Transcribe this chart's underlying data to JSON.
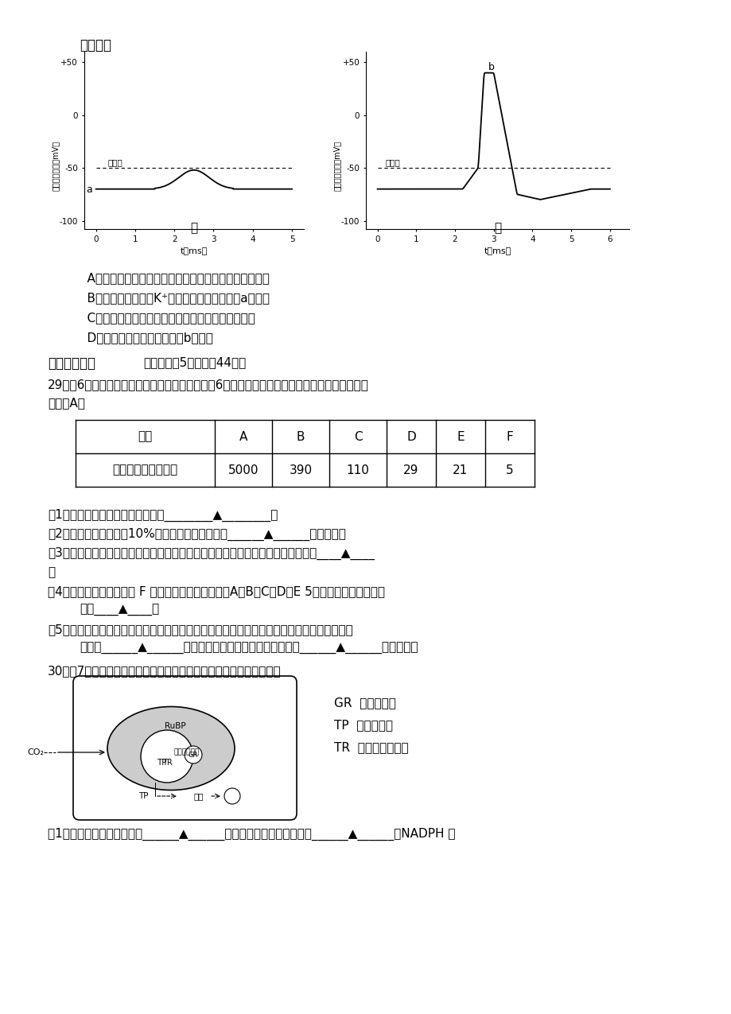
{
  "title_text": "错误的是",
  "options": [
    "A．甲图所示的电位传播至肌纤维部，不能引起肌肉收缩",
    "B．若突触间隙中的K+浓度急性下降，则甲图a点下移",
    "C．乙图表示肌膜去极化达到阈电位，产生动作电位",
    "D．增加刺激强度无法使乙图b点上升"
  ],
  "table_headers": [
    "种群",
    "A",
    "B",
    "C",
    "D",
    "E",
    "F"
  ],
  "table_row1": [
    "有机物同化量相对值",
    "5000",
    "390",
    "110",
    "29",
    "21",
    "5"
  ],
  "legend_items": [
    "GR  葡萄糖载体",
    "TP  三碳糖磷酸",
    "TR  三碳糖磷酸载体"
  ],
  "background_color": "#ffffff",
  "text_color": "#000000"
}
